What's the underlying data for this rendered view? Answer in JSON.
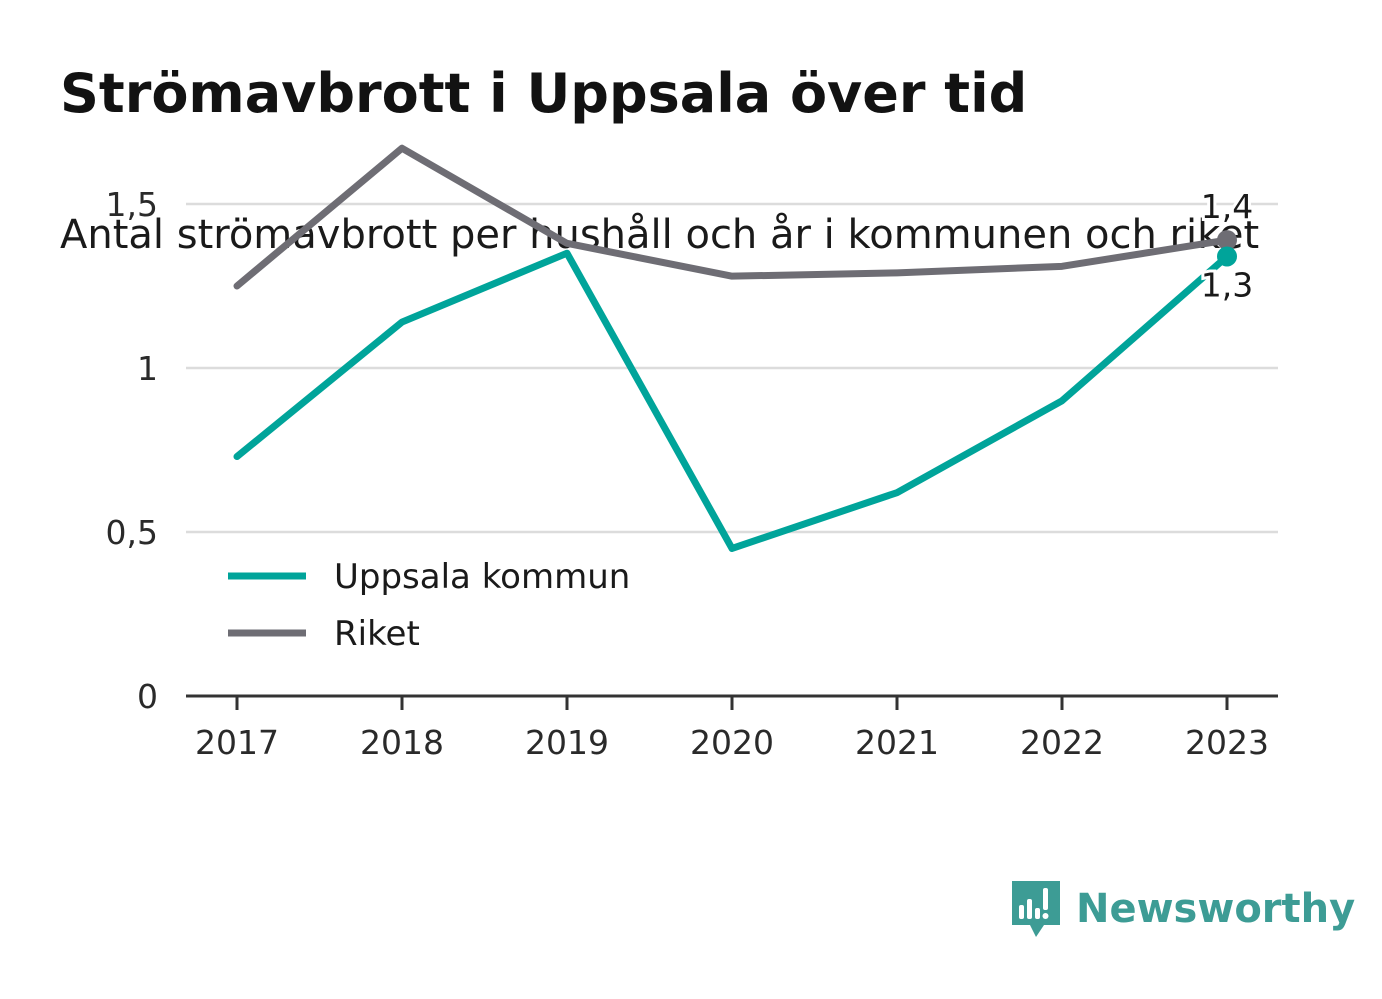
{
  "title": "Strömavbrott i Uppsala över tid",
  "subtitle": "Antal strömavbrott per hushåll och år i kommunen och riket",
  "brand": {
    "name": "Newsworthy",
    "icon": "newsworthy-logo-icon",
    "color": "#3d9c95"
  },
  "chart_data": {
    "type": "line",
    "categories": [
      "2017",
      "2018",
      "2019",
      "2020",
      "2021",
      "2022",
      "2023"
    ],
    "series": [
      {
        "name": "Uppsala kommun",
        "color": "#00a49a",
        "values": [
          0.73,
          1.14,
          1.35,
          0.45,
          0.62,
          0.9,
          1.34
        ],
        "end_label": "1,3"
      },
      {
        "name": "Riket",
        "color": "#6e6d74",
        "values": [
          1.25,
          1.67,
          1.38,
          1.28,
          1.29,
          1.31,
          1.39
        ],
        "end_label": "1,4"
      }
    ],
    "yticks": [
      {
        "value": 0,
        "label": "0"
      },
      {
        "value": 0.5,
        "label": "0,5"
      },
      {
        "value": 1,
        "label": "1"
      },
      {
        "value": 1.5,
        "label": "1,5"
      }
    ],
    "ylim": [
      0,
      1.7
    ],
    "grid": true,
    "legend_position": "left-center"
  }
}
